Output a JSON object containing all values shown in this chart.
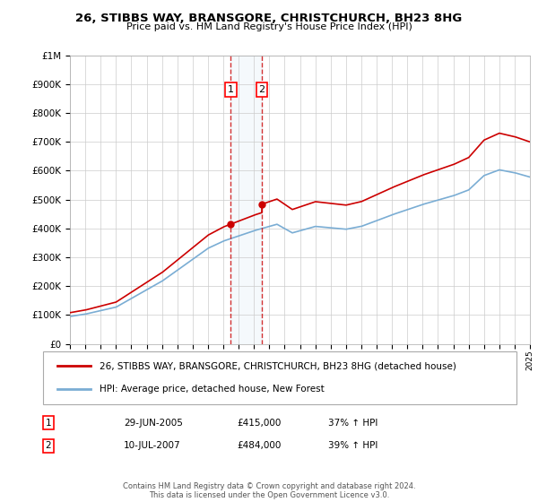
{
  "title1": "26, STIBBS WAY, BRANSGORE, CHRISTCHURCH, BH23 8HG",
  "title2": "Price paid vs. HM Land Registry's House Price Index (HPI)",
  "legend_line1": "26, STIBBS WAY, BRANSGORE, CHRISTCHURCH, BH23 8HG (detached house)",
  "legend_line2": "HPI: Average price, detached house, New Forest",
  "annotation1_label": "1",
  "annotation1_date": "29-JUN-2005",
  "annotation1_price": "£415,000",
  "annotation1_hpi": "37% ↑ HPI",
  "annotation2_label": "2",
  "annotation2_date": "10-JUL-2007",
  "annotation2_price": "£484,000",
  "annotation2_hpi": "39% ↑ HPI",
  "copyright_text": "Contains HM Land Registry data © Crown copyright and database right 2024.\nThis data is licensed under the Open Government Licence v3.0.",
  "sale1_year": 2005.49,
  "sale1_price": 415000,
  "sale2_year": 2007.52,
  "sale2_price": 484000,
  "hpi_color": "#7aadd4",
  "property_color": "#cc0000",
  "background_color": "#ffffff",
  "grid_color": "#cccccc",
  "ylim_max": 1000000,
  "xmin": 1995,
  "xmax": 2025
}
